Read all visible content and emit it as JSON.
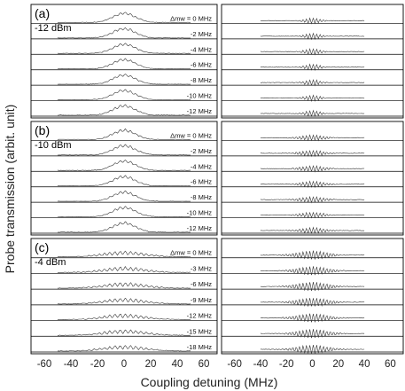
{
  "chart_data": {
    "type": "line",
    "xlabel": "Coupling detuning (MHz)",
    "ylabel": "Probe transmission (arbit. unit)",
    "xlim": [
      -70,
      70
    ],
    "xticks": [
      "-60",
      "-40",
      "-20",
      "0",
      "20",
      "40",
      "60"
    ],
    "xtick_values": [
      -60,
      -40,
      -20,
      0,
      20,
      40,
      60
    ],
    "panels": [
      {
        "label": "(a)",
        "power": "-12 dBm",
        "detunings": [
          "Δ_mw = 0 MHz",
          "-2 MHz",
          "-4 MHz",
          "-6 MHz",
          "-8 MHz",
          "-10 MHz",
          "-12 MHz"
        ],
        "detuning_values": [
          0,
          -2,
          -4,
          -6,
          -8,
          -10,
          -12
        ]
      },
      {
        "label": "(b)",
        "power": "-10 dBm",
        "detunings": [
          "Δ_mw = 0 MHz",
          "-2 MHz",
          "-4 MHz",
          "-6 MHz",
          "-8 MHz",
          "-10 MHz",
          "-12 MHz"
        ],
        "detuning_values": [
          0,
          -2,
          -4,
          -6,
          -8,
          -10,
          -12
        ]
      },
      {
        "label": "(c)",
        "power": "-4 dBm",
        "detunings": [
          "Δ_mw = 0 MHz",
          "-3 MHz",
          "-6 MHz",
          "-9 MHz",
          "-12 MHz",
          "-15 MHz",
          "-18 MHz"
        ],
        "detuning_values": [
          0,
          -3,
          -6,
          -9,
          -12,
          -15,
          -18
        ]
      }
    ],
    "grid": false,
    "legend": "none"
  },
  "colors": {
    "trace": "#333333",
    "frame": "#000000"
  }
}
